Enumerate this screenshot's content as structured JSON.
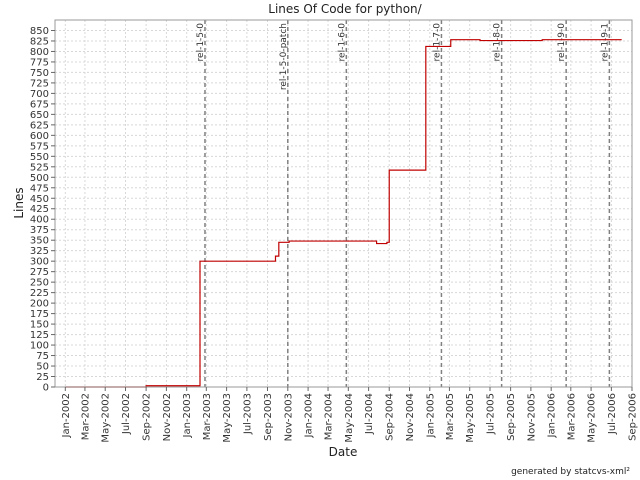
{
  "footer": "generated by statcvs-xml²",
  "colors": {
    "series": "#c00000",
    "grid": "#d8d8d8",
    "release": "#808080",
    "frame": "#999999",
    "background": "#ffffff"
  },
  "chart_data": {
    "type": "line",
    "step": true,
    "title": "Lines Of Code for python/",
    "xlabel": "Date",
    "ylabel": "Lines",
    "grid": true,
    "legend": "none",
    "xlim": [
      "2001-12-01",
      "2006-09-01"
    ],
    "ylim": [
      0,
      875
    ],
    "y_ticks": [
      0,
      25,
      50,
      75,
      100,
      125,
      150,
      175,
      200,
      225,
      250,
      275,
      300,
      325,
      350,
      375,
      400,
      425,
      450,
      475,
      500,
      525,
      550,
      575,
      600,
      625,
      650,
      675,
      700,
      725,
      750,
      775,
      800,
      825,
      850
    ],
    "x_ticks": [
      {
        "date": "2002-01-01",
        "label": "Jan-2002"
      },
      {
        "date": "2002-03-01",
        "label": "Mar-2002"
      },
      {
        "date": "2002-05-01",
        "label": "May-2002"
      },
      {
        "date": "2002-07-01",
        "label": "Jul-2002"
      },
      {
        "date": "2002-09-01",
        "label": "Sep-2002"
      },
      {
        "date": "2002-11-01",
        "label": "Nov-2002"
      },
      {
        "date": "2003-01-01",
        "label": "Jan-2003"
      },
      {
        "date": "2003-03-01",
        "label": "Mar-2003"
      },
      {
        "date": "2003-05-01",
        "label": "May-2003"
      },
      {
        "date": "2003-07-01",
        "label": "Jul-2003"
      },
      {
        "date": "2003-09-01",
        "label": "Sep-2003"
      },
      {
        "date": "2003-11-01",
        "label": "Nov-2003"
      },
      {
        "date": "2004-01-01",
        "label": "Jan-2004"
      },
      {
        "date": "2004-03-01",
        "label": "Mar-2004"
      },
      {
        "date": "2004-05-01",
        "label": "May-2004"
      },
      {
        "date": "2004-07-01",
        "label": "Jul-2004"
      },
      {
        "date": "2004-09-01",
        "label": "Sep-2004"
      },
      {
        "date": "2004-11-01",
        "label": "Nov-2004"
      },
      {
        "date": "2005-01-01",
        "label": "Jan-2005"
      },
      {
        "date": "2005-03-01",
        "label": "Mar-2005"
      },
      {
        "date": "2005-05-01",
        "label": "May-2005"
      },
      {
        "date": "2005-07-01",
        "label": "Jul-2005"
      },
      {
        "date": "2005-09-01",
        "label": "Sep-2005"
      },
      {
        "date": "2005-11-01",
        "label": "Nov-2005"
      },
      {
        "date": "2006-01-01",
        "label": "Jan-2006"
      },
      {
        "date": "2006-03-01",
        "label": "Mar-2006"
      },
      {
        "date": "2006-05-01",
        "label": "May-2006"
      },
      {
        "date": "2006-07-01",
        "label": "Jul-2006"
      },
      {
        "date": "2006-09-01",
        "label": "Sep-2006"
      }
    ],
    "series": [
      {
        "points": [
          {
            "x": "2002-01-01",
            "y": 0
          },
          {
            "x": "2002-09-01",
            "y": 3
          },
          {
            "x": "2003-02-10",
            "y": 300
          },
          {
            "x": "2003-09-25",
            "y": 312
          },
          {
            "x": "2003-10-05",
            "y": 345
          },
          {
            "x": "2003-11-05",
            "y": 348
          },
          {
            "x": "2004-07-25",
            "y": 342
          },
          {
            "x": "2004-08-25",
            "y": 345
          },
          {
            "x": "2004-09-01",
            "y": 517
          },
          {
            "x": "2004-12-20",
            "y": 812
          },
          {
            "x": "2005-03-05",
            "y": 828
          },
          {
            "x": "2005-06-01",
            "y": 826
          },
          {
            "x": "2005-12-05",
            "y": 828
          },
          {
            "x": "2006-08-01",
            "y": 828
          }
        ]
      }
    ],
    "releases": [
      {
        "label": "rel-1-5-0",
        "date": "2003-02-25"
      },
      {
        "label": "rel-1-5-0-patch",
        "date": "2003-11-01"
      },
      {
        "label": "rel-1-6-0",
        "date": "2004-04-25"
      },
      {
        "label": "rel-1-7-0",
        "date": "2005-02-05"
      },
      {
        "label": "rel-1-8-0",
        "date": "2005-08-05"
      },
      {
        "label": "rel-1-9-0",
        "date": "2006-02-15"
      },
      {
        "label": "rel-1-9-1",
        "date": "2006-06-25"
      }
    ]
  }
}
